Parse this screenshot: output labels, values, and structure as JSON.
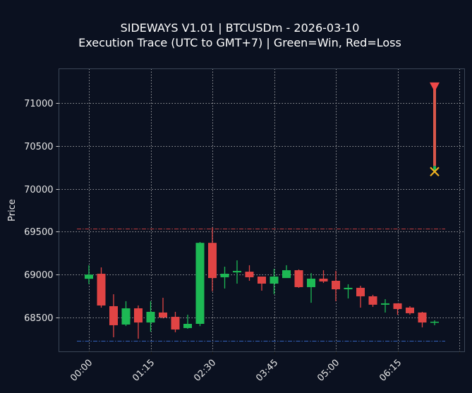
{
  "chart_data": {
    "type": "candlestick",
    "title": "SIDEWAYS V1.01 | BTCUSDm - 2026-03-10",
    "subtitle": "Execution Trace (UTC to GMT+7) | Green=Win, Red=Loss",
    "xlabel": "",
    "ylabel": "Price",
    "ylim": [
      68100,
      71400
    ],
    "yticks": [
      68500,
      69000,
      69500,
      70000,
      70500,
      71000
    ],
    "xticks": [
      "00:00",
      "01:15",
      "02:30",
      "03:45",
      "05:00",
      "06:15",
      ""
    ],
    "grid": true,
    "interval_minutes": 15,
    "colors": {
      "background": "#0b1120",
      "up": "#1db954",
      "down": "#e04444",
      "grid": "#c8c8c8",
      "frame": "#3a4556",
      "resistance": "#e04444",
      "support": "#3a6fd8",
      "trade_line": "#d9574a",
      "entry_marker": "#f04848",
      "exit_marker": "#f0b020"
    },
    "candles": [
      {
        "time": "00:00",
        "open": 68951,
        "high": 69109,
        "low": 68890,
        "close": 69000
      },
      {
        "time": "00:15",
        "open": 69010,
        "high": 69084,
        "low": 68615,
        "close": 68640
      },
      {
        "time": "00:30",
        "open": 68632,
        "high": 68771,
        "low": 68270,
        "close": 68410
      },
      {
        "time": "00:45",
        "open": 68418,
        "high": 68690,
        "low": 68401,
        "close": 68607
      },
      {
        "time": "01:00",
        "open": 68607,
        "high": 68640,
        "low": 68253,
        "close": 68442
      },
      {
        "time": "01:15",
        "open": 68442,
        "high": 68690,
        "low": 68335,
        "close": 68566
      },
      {
        "time": "01:30",
        "open": 68558,
        "high": 68730,
        "low": 68490,
        "close": 68500
      },
      {
        "time": "01:45",
        "open": 68508,
        "high": 68566,
        "low": 68328,
        "close": 68360
      },
      {
        "time": "02:00",
        "open": 68377,
        "high": 68533,
        "low": 68368,
        "close": 68426
      },
      {
        "time": "02:15",
        "open": 68426,
        "high": 69380,
        "low": 68400,
        "close": 69370
      },
      {
        "time": "02:30",
        "open": 69370,
        "high": 69550,
        "low": 68805,
        "close": 68960
      },
      {
        "time": "02:45",
        "open": 68969,
        "high": 69092,
        "low": 68838,
        "close": 69010
      },
      {
        "time": "03:00",
        "open": 69026,
        "high": 69166,
        "low": 68895,
        "close": 69043
      },
      {
        "time": "03:15",
        "open": 69034,
        "high": 69109,
        "low": 68928,
        "close": 68969
      },
      {
        "time": "03:30",
        "open": 68977,
        "high": 68977,
        "low": 68813,
        "close": 68895
      },
      {
        "time": "03:45",
        "open": 68895,
        "high": 69068,
        "low": 68772,
        "close": 68977
      },
      {
        "time": "04:00",
        "open": 68960,
        "high": 69109,
        "low": 68961,
        "close": 69051
      },
      {
        "time": "04:15",
        "open": 69051,
        "high": 69060,
        "low": 68846,
        "close": 68854
      },
      {
        "time": "04:30",
        "open": 68854,
        "high": 69018,
        "low": 68672,
        "close": 68953
      },
      {
        "time": "04:45",
        "open": 68953,
        "high": 69051,
        "low": 68903,
        "close": 68920
      },
      {
        "time": "05:00",
        "open": 68928,
        "high": 69043,
        "low": 68690,
        "close": 68829
      },
      {
        "time": "05:15",
        "open": 68829,
        "high": 68887,
        "low": 68722,
        "close": 68846
      },
      {
        "time": "05:30",
        "open": 68846,
        "high": 68870,
        "low": 68615,
        "close": 68747
      },
      {
        "time": "05:45",
        "open": 68747,
        "high": 68764,
        "low": 68624,
        "close": 68649
      },
      {
        "time": "06:00",
        "open": 68649,
        "high": 68714,
        "low": 68558,
        "close": 68665
      },
      {
        "time": "06:15",
        "open": 68665,
        "high": 68665,
        "low": 68533,
        "close": 68599
      },
      {
        "time": "06:30",
        "open": 68616,
        "high": 68632,
        "low": 68533,
        "close": 68550
      },
      {
        "time": "06:45",
        "open": 68558,
        "high": 68566,
        "low": 68385,
        "close": 68442
      },
      {
        "time": "07:00",
        "open": 68442,
        "high": 68467,
        "low": 68410,
        "close": 68451
      }
    ],
    "levels": [
      {
        "name": "resistance",
        "price": 69540,
        "style": "dash-dot",
        "color": "#e04444"
      },
      {
        "name": "support",
        "price": 68230,
        "style": "dash-dot",
        "color": "#3a6fd8"
      }
    ],
    "trades": [
      {
        "time": "07:00",
        "entry_price": 71190,
        "exit_price": 70200,
        "direction": "sell",
        "entry_marker": "down-triangle",
        "exit_marker": "x",
        "result": "win"
      }
    ]
  }
}
